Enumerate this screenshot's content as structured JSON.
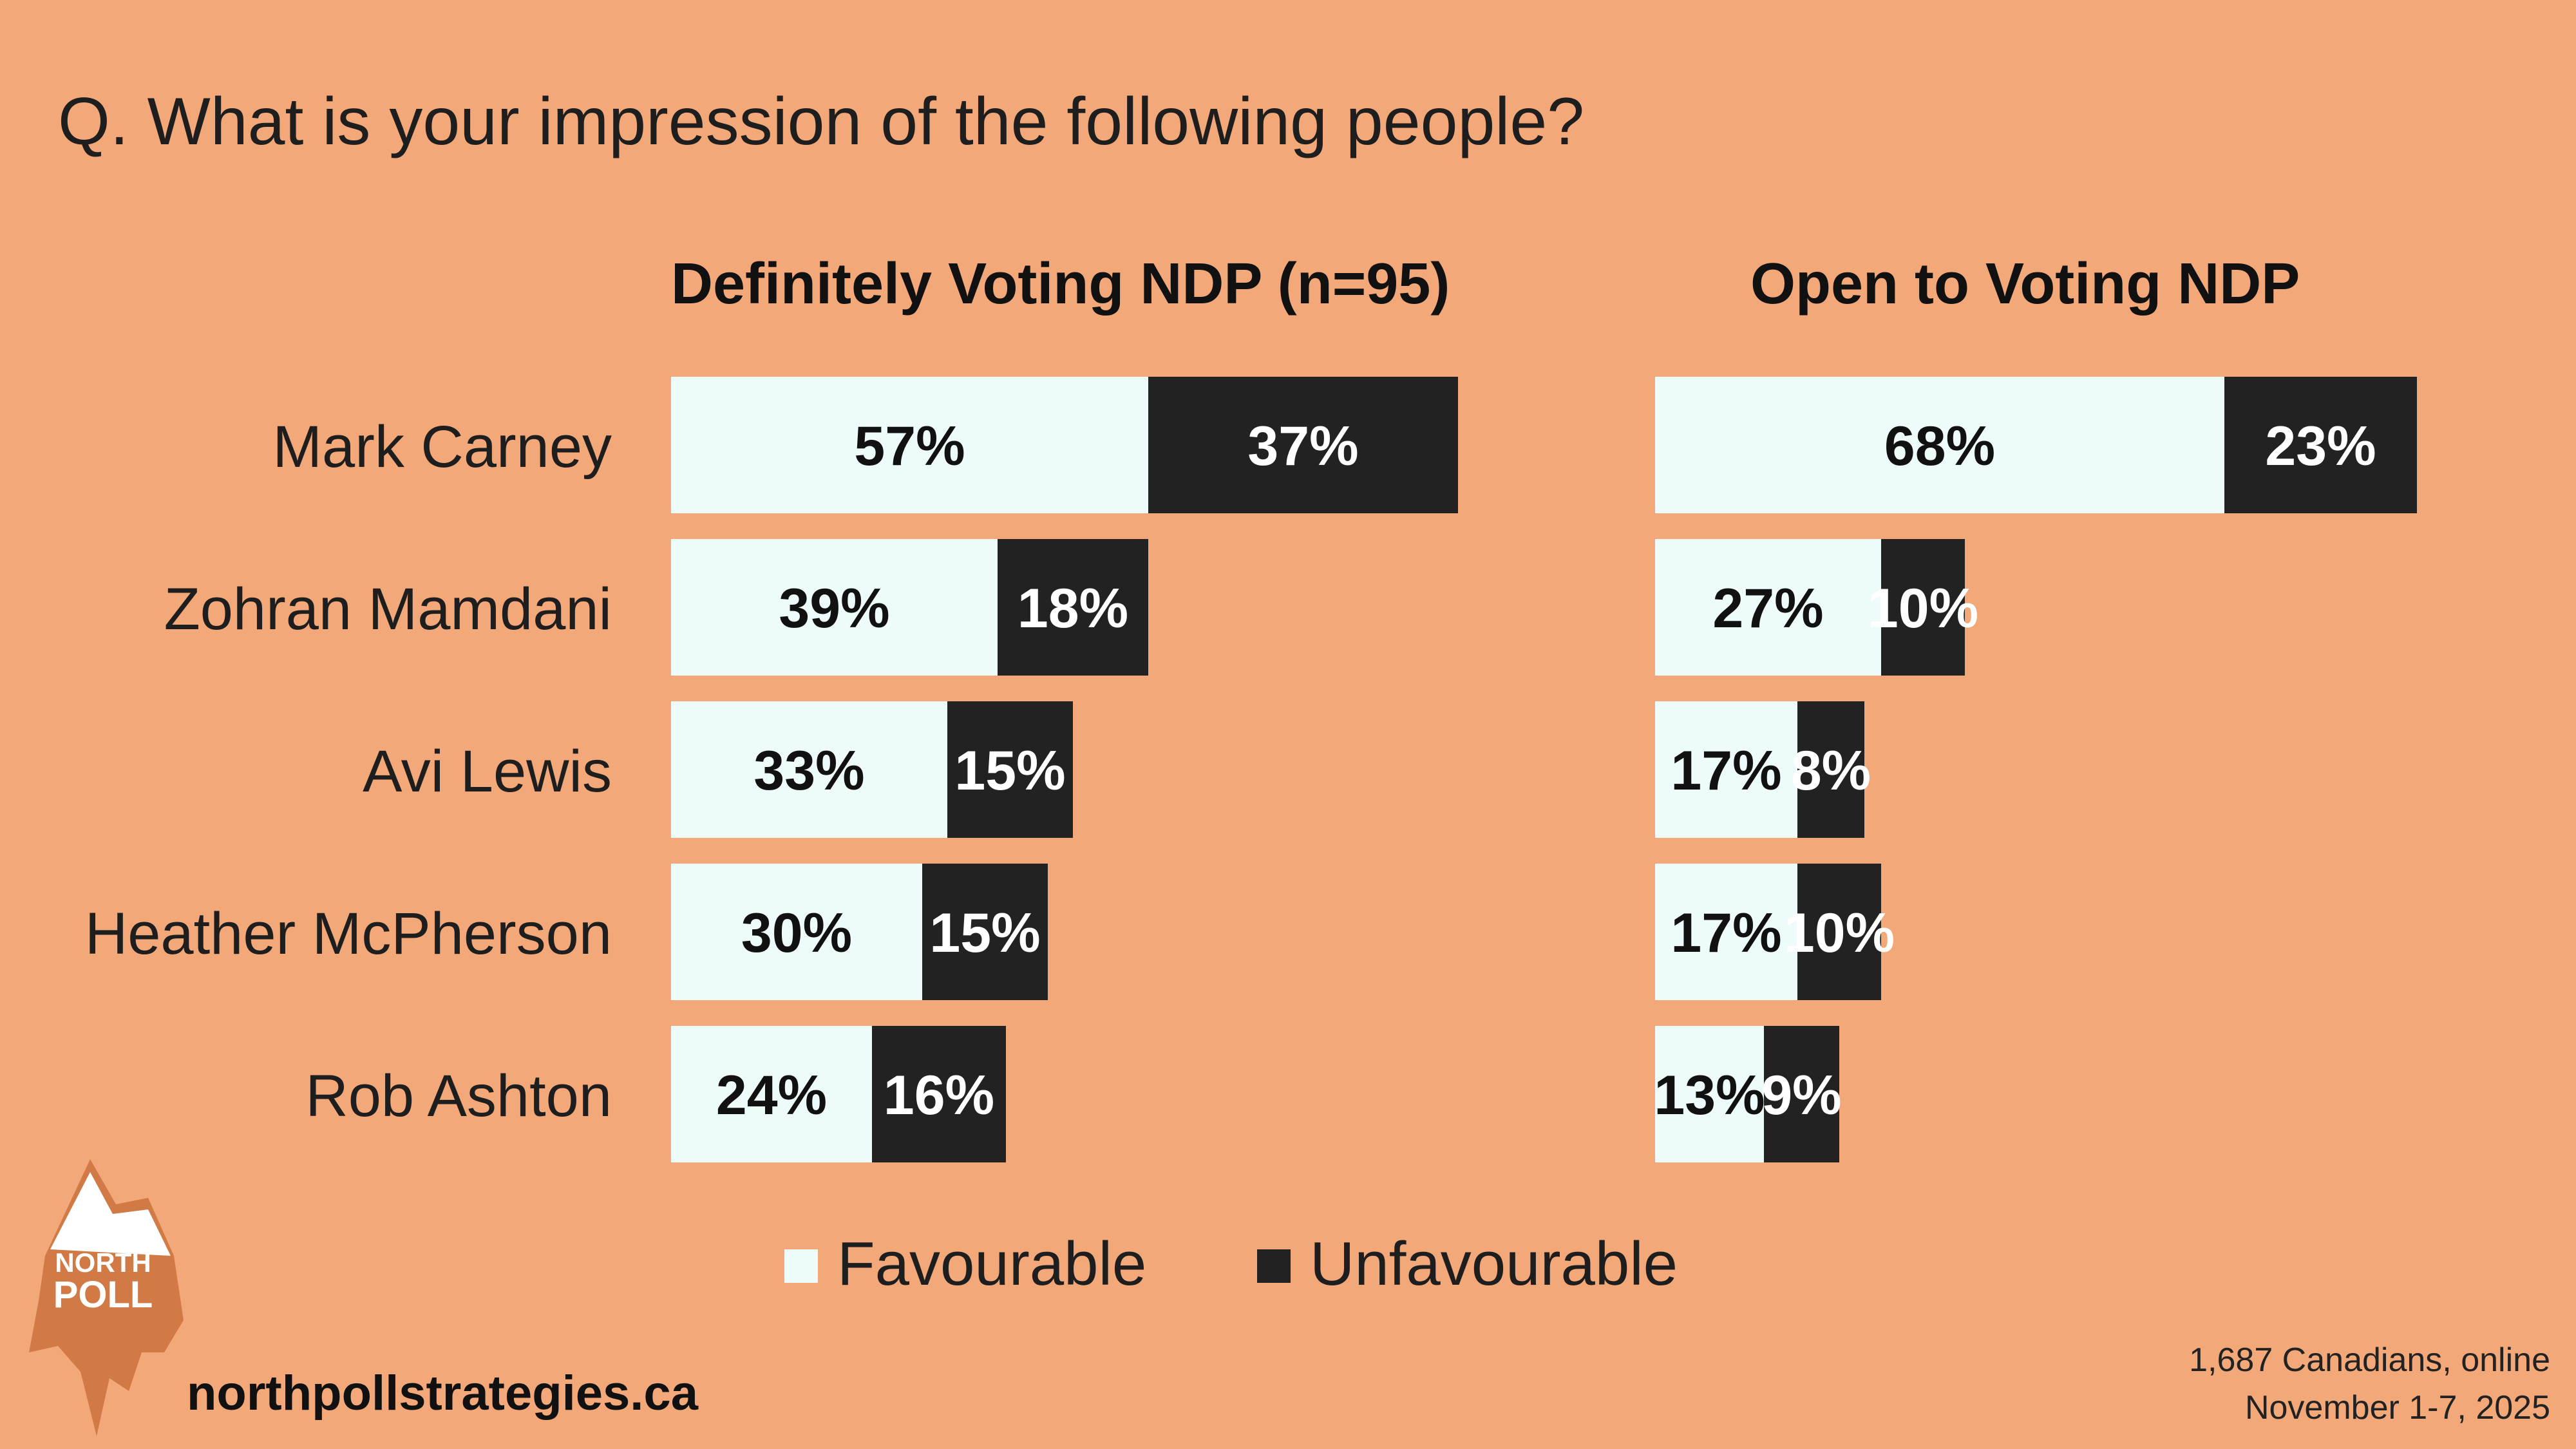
{
  "question": "Q. What is your impression of the following people?",
  "colors": {
    "background": "#F2A878",
    "favourable": "#EEFBFB",
    "unfavourable": "#222222"
  },
  "legend": {
    "favourable_label": "Favourable",
    "unfavourable_label": "Unfavourable"
  },
  "footer": {
    "site": "northpollstrategies.ca",
    "sample": "1,687 Canadians, online",
    "dates": "November 1-7, 2025"
  },
  "logo": {
    "line1": "NORTH",
    "line2": "POLL"
  },
  "chart_data": [
    {
      "type": "bar",
      "orientation": "horizontal-stacked",
      "title": "Definitely Voting NDP (n=95)",
      "categories": [
        "Mark Carney",
        "Zohran Mamdani",
        "Avi Lewis",
        "Heather McPherson",
        "Rob Ashton"
      ],
      "series": [
        {
          "name": "Favourable",
          "values": [
            57,
            39,
            33,
            30,
            24
          ]
        },
        {
          "name": "Unfavourable",
          "values": [
            37,
            18,
            15,
            15,
            16
          ]
        }
      ],
      "unit": "%",
      "xlim": [
        0,
        100
      ]
    },
    {
      "type": "bar",
      "orientation": "horizontal-stacked",
      "title": "Open to Voting NDP",
      "categories": [
        "Mark Carney",
        "Zohran Mamdani",
        "Avi Lewis",
        "Heather McPherson",
        "Rob Ashton"
      ],
      "series": [
        {
          "name": "Favourable",
          "values": [
            68,
            27,
            17,
            17,
            13
          ]
        },
        {
          "name": "Unfavourable",
          "values": [
            23,
            10,
            8,
            10,
            9
          ]
        }
      ],
      "unit": "%",
      "xlim": [
        0,
        100
      ]
    }
  ]
}
